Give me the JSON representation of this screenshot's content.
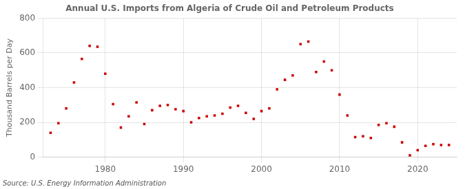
{
  "chart_data": {
    "type": "scatter",
    "title": "Annual U.S. Imports from Algeria of Crude Oil and Petroleum Products",
    "ylabel": "Thousand Barrels per Day",
    "annotations": [
      "Source: U.S. Energy Information Administration"
    ],
    "x": [
      1973,
      1974,
      1975,
      1976,
      1977,
      1978,
      1979,
      1980,
      1981,
      1982,
      1983,
      1984,
      1985,
      1986,
      1987,
      1988,
      1989,
      1990,
      1991,
      1992,
      1993,
      1994,
      1995,
      1996,
      1997,
      1998,
      1999,
      2000,
      2001,
      2002,
      2003,
      2004,
      2005,
      2006,
      2007,
      2008,
      2009,
      2010,
      2011,
      2012,
      2013,
      2014,
      2015,
      2016,
      2017,
      2018,
      2019,
      2020,
      2021,
      2022,
      2023,
      2024
    ],
    "values": [
      140,
      195,
      280,
      430,
      565,
      640,
      635,
      480,
      305,
      170,
      235,
      315,
      190,
      270,
      295,
      300,
      275,
      265,
      200,
      225,
      235,
      240,
      250,
      285,
      295,
      255,
      220,
      265,
      280,
      390,
      445,
      470,
      650,
      665,
      490,
      550,
      500,
      360,
      240,
      115,
      120,
      110,
      185,
      195,
      175,
      85,
      10,
      40,
      65,
      75,
      70,
      70
    ],
    "color": "#cc0000",
    "marker": "square",
    "xlim": [
      1972,
      2025
    ],
    "xticks": [
      1980,
      1990,
      2000,
      2010,
      2020
    ],
    "ylim": [
      0,
      800
    ],
    "yticks": [
      0,
      200,
      400,
      600,
      800
    ],
    "grid": true
  }
}
